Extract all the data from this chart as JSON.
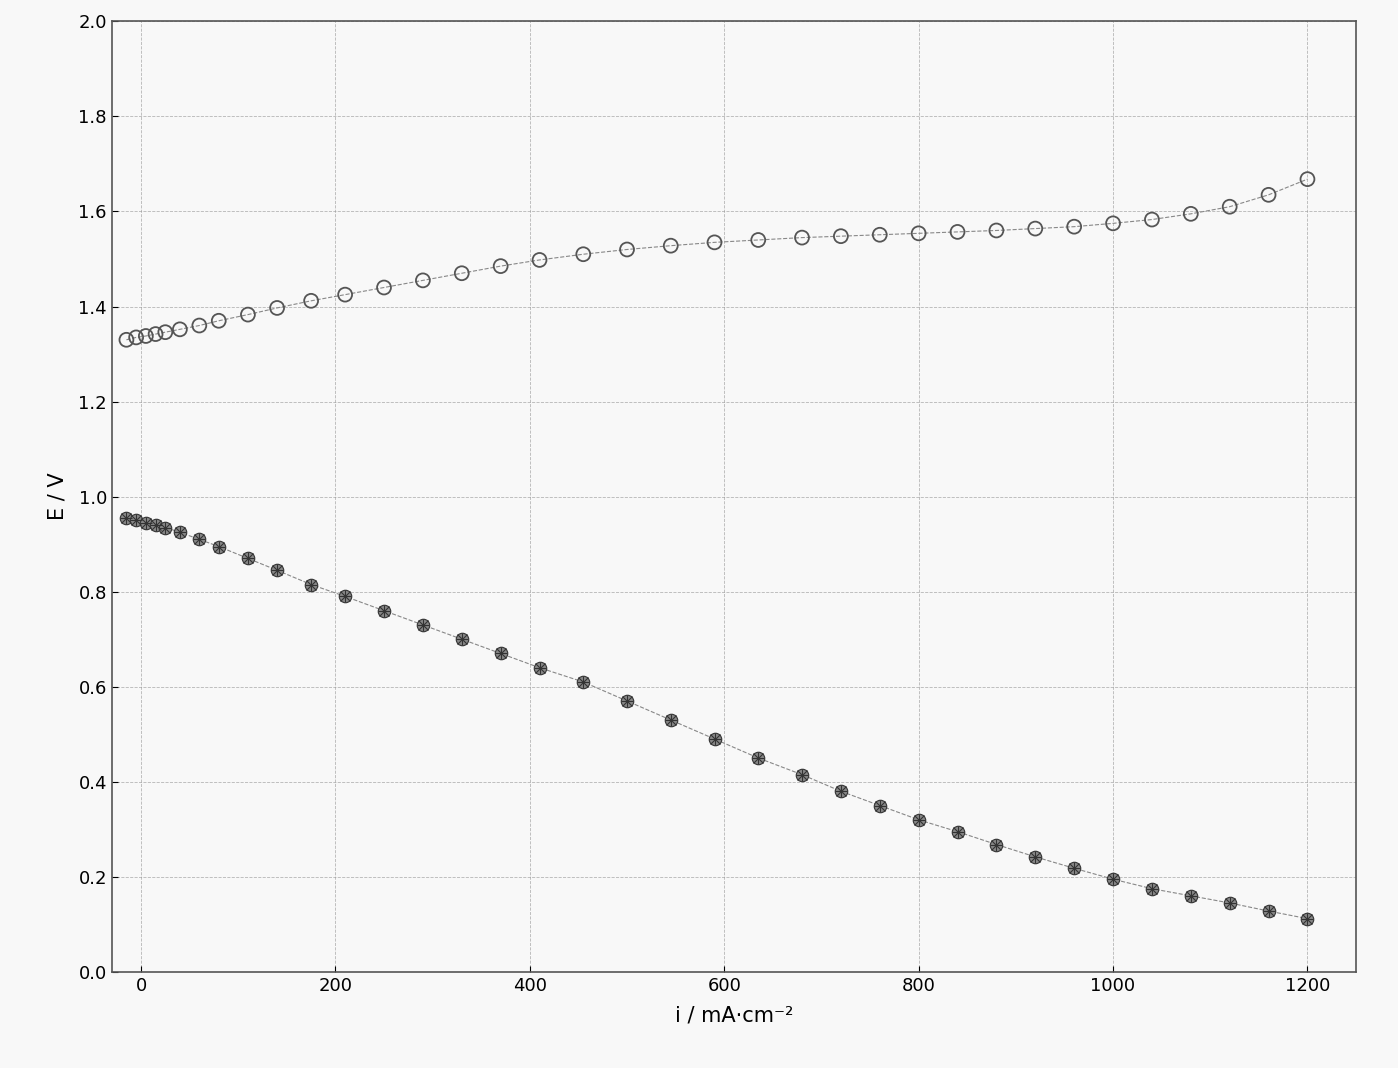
{
  "title": "",
  "xlabel": "i / mA·cm⁻²",
  "ylabel": "E / V",
  "xlim": [
    -30,
    1250
  ],
  "ylim": [
    0.0,
    2.0
  ],
  "xticks": [
    0,
    200,
    400,
    600,
    800,
    1000,
    1200
  ],
  "yticks": [
    0.0,
    0.2,
    0.4,
    0.6,
    0.8,
    1.0,
    1.2,
    1.4,
    1.6,
    1.8,
    2.0
  ],
  "background_color": "#f8f8f8",
  "grid_color": "#999999",
  "series1_x": [
    -15,
    -5,
    5,
    15,
    25,
    40,
    60,
    80,
    110,
    140,
    175,
    210,
    250,
    290,
    330,
    370,
    410,
    455,
    500,
    545,
    590,
    635,
    680,
    720,
    760,
    800,
    840,
    880,
    920,
    960,
    1000,
    1040,
    1080,
    1120,
    1160,
    1200
  ],
  "series1_y": [
    0.955,
    0.95,
    0.945,
    0.94,
    0.935,
    0.925,
    0.91,
    0.895,
    0.87,
    0.845,
    0.815,
    0.79,
    0.76,
    0.73,
    0.7,
    0.67,
    0.64,
    0.61,
    0.57,
    0.53,
    0.49,
    0.45,
    0.415,
    0.38,
    0.35,
    0.32,
    0.295,
    0.268,
    0.242,
    0.218,
    0.195,
    0.175,
    0.16,
    0.145,
    0.128,
    0.112
  ],
  "series2_x": [
    -15,
    -5,
    5,
    15,
    25,
    40,
    60,
    80,
    110,
    140,
    175,
    210,
    250,
    290,
    330,
    370,
    410,
    455,
    500,
    545,
    590,
    635,
    680,
    720,
    760,
    800,
    840,
    880,
    920,
    960,
    1000,
    1040,
    1080,
    1120,
    1160,
    1200
  ],
  "series2_y": [
    1.33,
    1.335,
    1.338,
    1.342,
    1.346,
    1.352,
    1.36,
    1.37,
    1.383,
    1.397,
    1.412,
    1.425,
    1.44,
    1.455,
    1.47,
    1.485,
    1.498,
    1.51,
    1.52,
    1.528,
    1.535,
    1.54,
    1.545,
    1.548,
    1.551,
    1.554,
    1.557,
    1.56,
    1.564,
    1.568,
    1.575,
    1.583,
    1.595,
    1.61,
    1.635,
    1.668
  ],
  "marker1": "o",
  "marker2": "o",
  "marker1_size": 100,
  "marker2_size": 100,
  "line_color": "#888888",
  "marker1_facecolor": "#888888",
  "marker1_edgecolor": "#444444",
  "marker2_facecolor": "none",
  "marker2_edgecolor": "#555555",
  "linewidth": 0.8,
  "xlabel_text": "i/mA·cm⁻²",
  "fontsize_label": 15,
  "fontsize_tick": 13
}
